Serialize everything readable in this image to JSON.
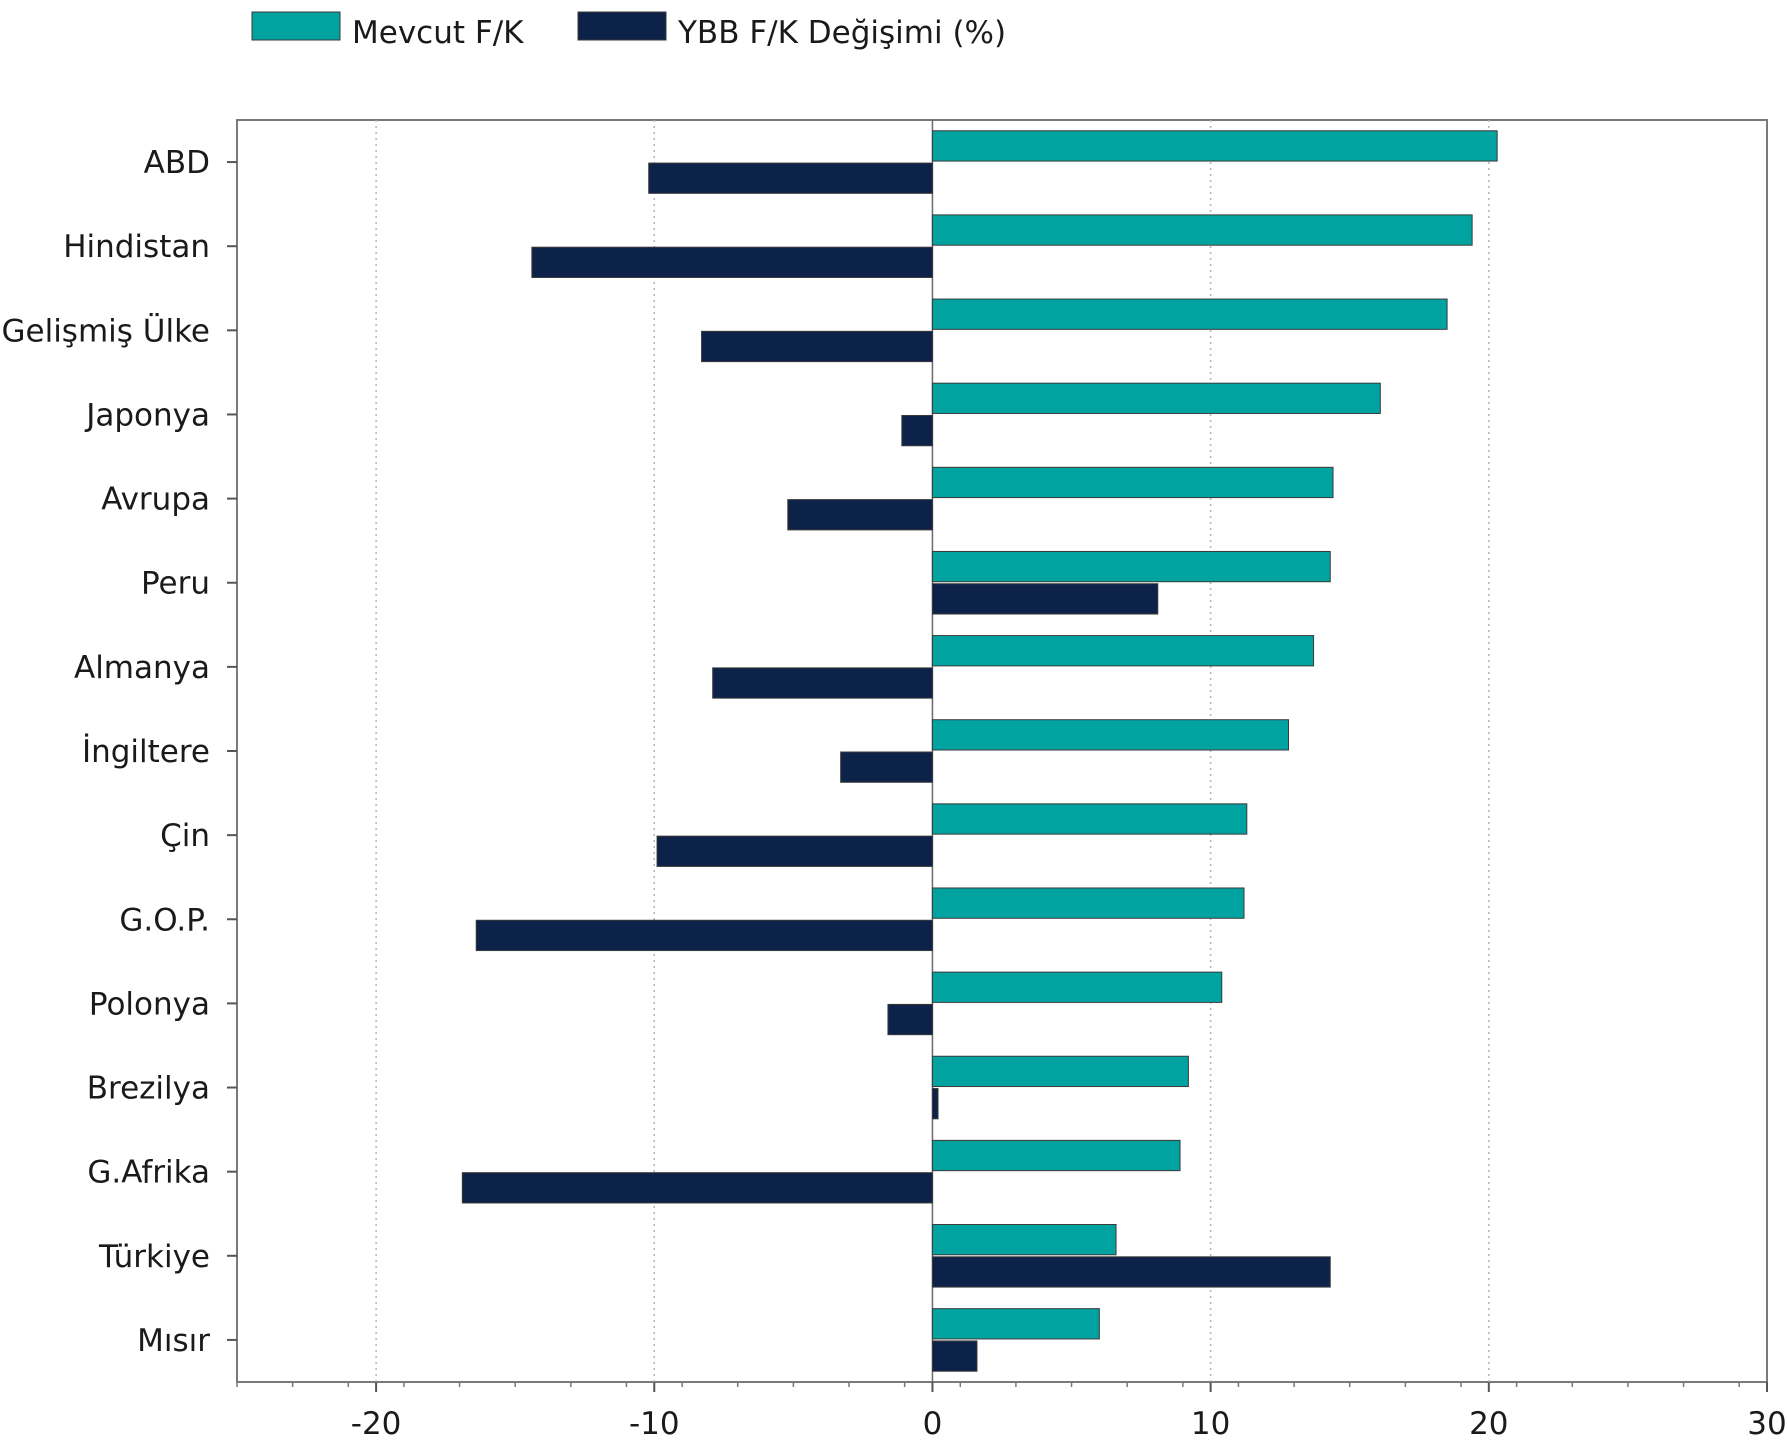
{
  "chart_data": {
    "type": "bar",
    "orientation": "horizontal",
    "title": "",
    "xlabel": "",
    "ylabel": "",
    "categories": [
      "ABD",
      "Hindistan",
      "Gelişmiş Ülke",
      "Japonya",
      "Avrupa",
      "Peru",
      "Almanya",
      "İngiltere",
      "Çin",
      "G.O.P.",
      "Polonya",
      "Brezilya",
      "G.Afrika",
      "Türkiye",
      "Mısır"
    ],
    "series": [
      {
        "name": "Mevcut F/K",
        "color": "#00a3a0",
        "values": [
          20.3,
          19.4,
          18.5,
          16.1,
          14.4,
          14.3,
          13.7,
          12.8,
          11.3,
          11.2,
          10.4,
          9.2,
          8.9,
          6.6,
          6.0
        ]
      },
      {
        "name": "YBB F/K Değişimi (%)",
        "color": "#0c2249",
        "values": [
          -10.2,
          -14.4,
          -8.3,
          -1.1,
          -5.2,
          8.1,
          -7.9,
          -3.3,
          -9.9,
          -16.4,
          -1.6,
          0.2,
          -16.9,
          14.3,
          1.6
        ]
      }
    ],
    "xlim": [
      -25,
      30
    ],
    "xticks": [
      -20,
      -10,
      0,
      10,
      20,
      30
    ],
    "xtick_labels": [
      "-20",
      "-10",
      "0",
      "10",
      "20",
      "30"
    ],
    "grid": "vertical dotted",
    "legend_position": "top-left"
  }
}
